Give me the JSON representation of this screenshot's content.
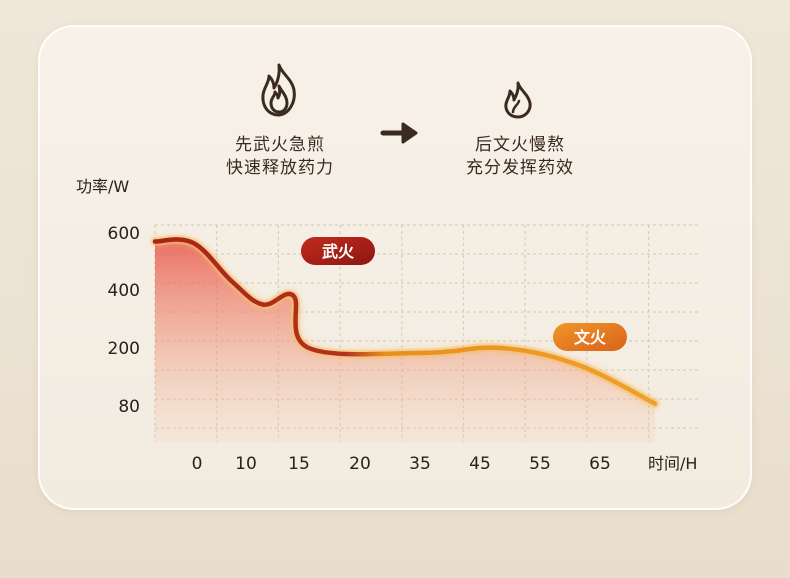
{
  "header": {
    "phase1": {
      "icon": "fire-icon",
      "line1": "先武火急煎",
      "line2": "快速释放药力"
    },
    "arrow_icon": "arrow-right-icon",
    "phase2": {
      "icon": "small-flame-icon",
      "line1": "后文火慢熬",
      "line2": "充分发挥药效"
    }
  },
  "colors": {
    "text": "#2a211c",
    "curve_orange": "#f0a02a",
    "curve_red": "#a8231a",
    "fill_red": "#e8584e",
    "badge_high": "#a21d17",
    "badge_low": "#e07a1c",
    "grid": "#d9cdbd"
  },
  "chart_data": {
    "type": "area",
    "ylabel": "功率/W",
    "xlabel": "时间/H",
    "y_ticks": [
      {
        "label": "600",
        "value": 600
      },
      {
        "label": "400",
        "value": 400
      },
      {
        "label": "200",
        "value": 200
      },
      {
        "label": "80",
        "value": 80
      }
    ],
    "x_ticks": [
      "0",
      "10",
      "15",
      "20",
      "35",
      "45",
      "55",
      "65"
    ],
    "grid": true,
    "series": [
      {
        "points": [
          {
            "x": 0,
            "y": 570
          },
          {
            "x": 5,
            "y": 565
          },
          {
            "x": 10,
            "y": 430
          },
          {
            "x": 14,
            "y": 350
          },
          {
            "x": 18,
            "y": 380
          },
          {
            "x": 20,
            "y": 200
          },
          {
            "x": 35,
            "y": 190
          },
          {
            "x": 45,
            "y": 200
          },
          {
            "x": 55,
            "y": 165
          },
          {
            "x": 65,
            "y": 85
          }
        ]
      }
    ],
    "annotations": [
      {
        "text": "武火",
        "x": 15,
        "y": 545,
        "color": "#a21d17"
      },
      {
        "text": "文火",
        "x": 55,
        "y": 242,
        "color": "#e07a1c"
      }
    ]
  }
}
